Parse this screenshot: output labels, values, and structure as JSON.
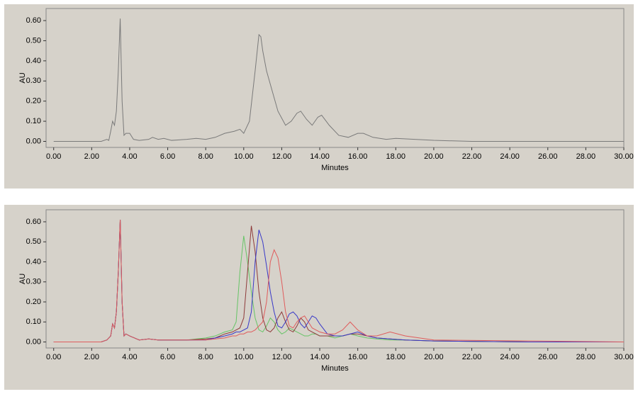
{
  "chart_data": [
    {
      "type": "line",
      "y_label": "AU",
      "x_label": "Minutes",
      "xlim": [
        -0.4,
        30
      ],
      "ylim": [
        -0.03,
        0.66
      ],
      "xticks": [
        {
          "value": 0,
          "label": "0.00"
        },
        {
          "value": 2,
          "label": "2.00"
        },
        {
          "value": 4,
          "label": "4.00"
        },
        {
          "value": 6,
          "label": "6.00"
        },
        {
          "value": 8,
          "label": "8.00"
        },
        {
          "value": 10,
          "label": "10.00"
        },
        {
          "value": 12,
          "label": "12.00"
        },
        {
          "value": 14,
          "label": "14.00"
        },
        {
          "value": 16,
          "label": "16.00"
        },
        {
          "value": 18,
          "label": "18.00"
        },
        {
          "value": 20,
          "label": "20.00"
        },
        {
          "value": 22,
          "label": "22.00"
        },
        {
          "value": 24,
          "label": "24.00"
        },
        {
          "value": 26,
          "label": "26.00"
        },
        {
          "value": 28,
          "label": "28.00"
        },
        {
          "value": 30,
          "label": "30.00"
        }
      ],
      "yticks": [
        {
          "value": 0,
          "label": "0.00"
        },
        {
          "value": 0.1,
          "label": "0.10"
        },
        {
          "value": 0.2,
          "label": "0.20"
        },
        {
          "value": 0.3,
          "label": "0.30"
        },
        {
          "value": 0.4,
          "label": "0.40"
        },
        {
          "value": 0.5,
          "label": "0.50"
        },
        {
          "value": 0.6,
          "label": "0.60"
        }
      ],
      "x": [
        0,
        2.5,
        2.8,
        2.9,
        3.0,
        3.1,
        3.2,
        3.3,
        3.4,
        3.5,
        3.6,
        3.7,
        3.8,
        4.0,
        4.2,
        4.5,
        5.0,
        5.2,
        5.5,
        5.8,
        6.2,
        7.0,
        7.5,
        8.0,
        8.5,
        9.0,
        9.5,
        9.8,
        10.0,
        10.3,
        10.6,
        10.8,
        10.9,
        11.0,
        11.2,
        11.5,
        11.8,
        12.2,
        12.5,
        12.8,
        13.0,
        13.3,
        13.6,
        13.9,
        14.1,
        14.5,
        15.0,
        15.5,
        16.0,
        16.3,
        16.8,
        17.5,
        18.0,
        19.0,
        20.0,
        22.0,
        25.0,
        30.0
      ],
      "series": [
        {
          "color": "#7a7a7a",
          "values": [
            0,
            0,
            0.01,
            0.005,
            0.05,
            0.1,
            0.08,
            0.15,
            0.35,
            0.61,
            0.2,
            0.03,
            0.04,
            0.04,
            0.01,
            0.005,
            0.01,
            0.02,
            0.01,
            0.015,
            0.005,
            0.01,
            0.015,
            0.01,
            0.02,
            0.04,
            0.05,
            0.06,
            0.04,
            0.1,
            0.35,
            0.53,
            0.52,
            0.45,
            0.35,
            0.25,
            0.15,
            0.08,
            0.1,
            0.14,
            0.15,
            0.11,
            0.08,
            0.12,
            0.13,
            0.08,
            0.03,
            0.02,
            0.04,
            0.04,
            0.02,
            0.01,
            0.015,
            0.01,
            0.005,
            0,
            0,
            0
          ]
        }
      ]
    },
    {
      "type": "line",
      "y_label": "AU",
      "x_label": "Minutes",
      "xlim": [
        -0.4,
        30
      ],
      "ylim": [
        -0.03,
        0.66
      ],
      "xticks": [
        {
          "value": 0,
          "label": "0.00"
        },
        {
          "value": 2,
          "label": "2.00"
        },
        {
          "value": 4,
          "label": "4.00"
        },
        {
          "value": 6,
          "label": "6.00"
        },
        {
          "value": 8,
          "label": "8.00"
        },
        {
          "value": 10,
          "label": "10.00"
        },
        {
          "value": 12,
          "label": "12.00"
        },
        {
          "value": 14,
          "label": "14.00"
        },
        {
          "value": 16,
          "label": "16.00"
        },
        {
          "value": 18,
          "label": "18.00"
        },
        {
          "value": 20,
          "label": "20.00"
        },
        {
          "value": 22,
          "label": "22.00"
        },
        {
          "value": 24,
          "label": "24.00"
        },
        {
          "value": 26,
          "label": "26.00"
        },
        {
          "value": 28,
          "label": "28.00"
        },
        {
          "value": 30,
          "label": "30.00"
        }
      ],
      "yticks": [
        {
          "value": 0,
          "label": "0.00"
        },
        {
          "value": 0.1,
          "label": "0.10"
        },
        {
          "value": 0.2,
          "label": "0.20"
        },
        {
          "value": 0.3,
          "label": "0.30"
        },
        {
          "value": 0.4,
          "label": "0.40"
        },
        {
          "value": 0.5,
          "label": "0.50"
        },
        {
          "value": 0.6,
          "label": "0.60"
        }
      ],
      "x": [
        0,
        2.5,
        2.8,
        3.0,
        3.1,
        3.2,
        3.3,
        3.4,
        3.5,
        3.6,
        3.7,
        3.8,
        4.0,
        4.5,
        5.0,
        5.5,
        6.0,
        7.0,
        8.0,
        8.5,
        9.0,
        9.4,
        9.6,
        9.8,
        10.0,
        10.2,
        10.4,
        10.6,
        10.8,
        11.0,
        11.2,
        11.4,
        11.6,
        11.8,
        12.0,
        12.2,
        12.4,
        12.6,
        12.8,
        13.0,
        13.2,
        13.4,
        13.6,
        13.8,
        14.0,
        14.4,
        14.8,
        15.2,
        15.6,
        16.0,
        16.5,
        17.0,
        17.7,
        18.5,
        20.0,
        25.0,
        30.0
      ],
      "series": [
        {
          "color": "#66c466",
          "values": [
            0,
            0,
            0.01,
            0.03,
            0.09,
            0.07,
            0.15,
            0.35,
            0.61,
            0.2,
            0.03,
            0.04,
            0.03,
            0.01,
            0.015,
            0.01,
            0.01,
            0.01,
            0.02,
            0.03,
            0.05,
            0.06,
            0.1,
            0.35,
            0.53,
            0.4,
            0.25,
            0.12,
            0.06,
            0.05,
            0.08,
            0.12,
            0.1,
            0.06,
            0.04,
            0.05,
            0.07,
            0.06,
            0.05,
            0.04,
            0.03,
            0.03,
            0.04,
            0.04,
            0.03,
            0.03,
            0.02,
            0.03,
            0.04,
            0.03,
            0.02,
            0.015,
            0.01,
            0.01,
            0.005,
            0,
            0
          ]
        },
        {
          "color": "#8e3a3a",
          "values": [
            0,
            0,
            0.01,
            0.03,
            0.09,
            0.07,
            0.15,
            0.35,
            0.61,
            0.2,
            0.03,
            0.04,
            0.03,
            0.01,
            0.015,
            0.01,
            0.01,
            0.01,
            0.015,
            0.02,
            0.04,
            0.05,
            0.06,
            0.07,
            0.12,
            0.35,
            0.58,
            0.45,
            0.25,
            0.12,
            0.06,
            0.05,
            0.07,
            0.12,
            0.15,
            0.1,
            0.06,
            0.05,
            0.08,
            0.12,
            0.1,
            0.06,
            0.05,
            0.04,
            0.03,
            0.03,
            0.03,
            0.03,
            0.04,
            0.04,
            0.03,
            0.02,
            0.015,
            0.01,
            0.005,
            0,
            0
          ]
        },
        {
          "color": "#3838c8",
          "values": [
            0,
            0,
            0.01,
            0.03,
            0.09,
            0.07,
            0.15,
            0.35,
            0.61,
            0.2,
            0.03,
            0.04,
            0.03,
            0.01,
            0.015,
            0.01,
            0.01,
            0.01,
            0.01,
            0.02,
            0.03,
            0.04,
            0.05,
            0.05,
            0.06,
            0.07,
            0.15,
            0.4,
            0.56,
            0.5,
            0.38,
            0.25,
            0.15,
            0.08,
            0.07,
            0.1,
            0.14,
            0.15,
            0.13,
            0.09,
            0.07,
            0.1,
            0.13,
            0.12,
            0.09,
            0.04,
            0.03,
            0.03,
            0.04,
            0.05,
            0.03,
            0.02,
            0.015,
            0.01,
            0.005,
            0,
            0
          ]
        },
        {
          "color": "#e05c5c",
          "values": [
            0,
            0,
            0.01,
            0.03,
            0.09,
            0.07,
            0.15,
            0.35,
            0.61,
            0.2,
            0.03,
            0.04,
            0.03,
            0.01,
            0.015,
            0.01,
            0.01,
            0.01,
            0.01,
            0.015,
            0.02,
            0.03,
            0.03,
            0.04,
            0.04,
            0.05,
            0.05,
            0.06,
            0.08,
            0.1,
            0.2,
            0.4,
            0.46,
            0.42,
            0.3,
            0.15,
            0.08,
            0.07,
            0.1,
            0.12,
            0.13,
            0.1,
            0.07,
            0.06,
            0.05,
            0.04,
            0.04,
            0.06,
            0.1,
            0.06,
            0.03,
            0.03,
            0.05,
            0.03,
            0.01,
            0.005,
            0
          ]
        }
      ]
    }
  ]
}
